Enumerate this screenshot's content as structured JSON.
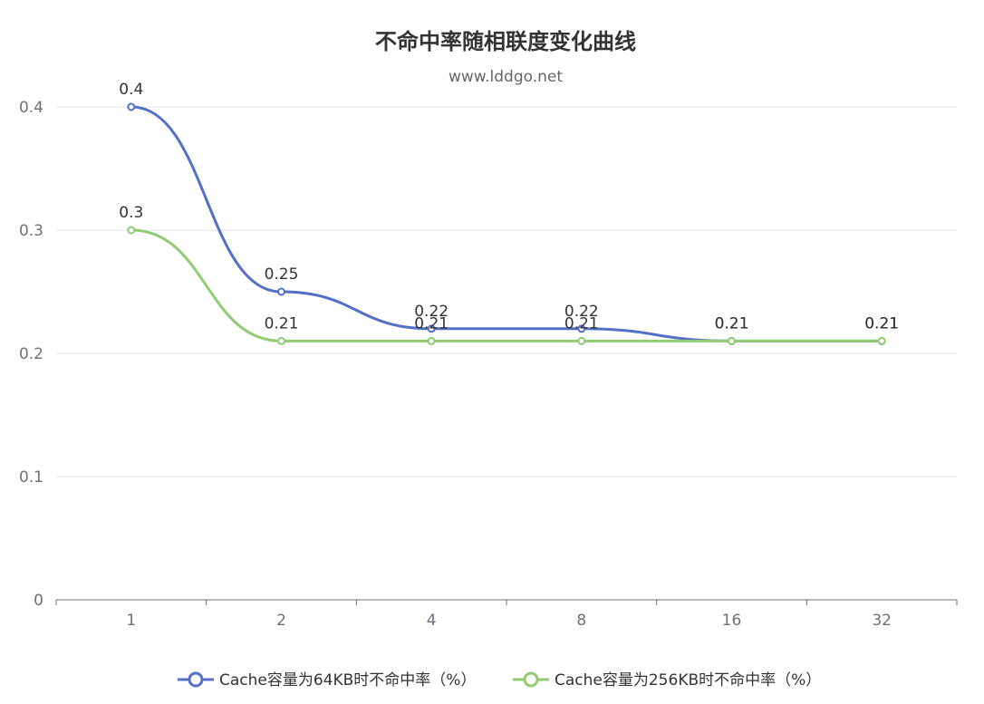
{
  "chart_data": {
    "type": "line",
    "title": "不命中率随相联度变化曲线",
    "subtitle": "www.lddgo.net",
    "categories": [
      "1",
      "2",
      "4",
      "8",
      "16",
      "32"
    ],
    "series": [
      {
        "name": "Cache容量为64KB时不命中率（%）",
        "values": [
          0.4,
          0.25,
          0.22,
          0.22,
          0.21,
          0.21
        ],
        "color": "#5470c6"
      },
      {
        "name": "Cache容量为256KB时不命中率（%）",
        "values": [
          0.3,
          0.21,
          0.21,
          0.21,
          0.21,
          0.21
        ],
        "color": "#91cc75"
      }
    ],
    "ylim": [
      0,
      0.4
    ],
    "yticks": [
      "0",
      "0.1",
      "0.2",
      "0.3",
      "0.4"
    ],
    "grid": true,
    "smooth": true,
    "legend_position": "bottom"
  }
}
